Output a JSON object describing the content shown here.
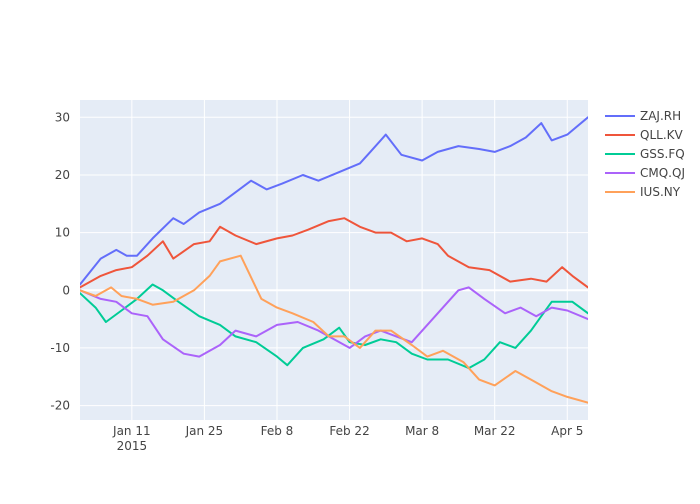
{
  "chart_data": {
    "type": "line",
    "title": "",
    "xlabel": "",
    "ylabel": "",
    "x_start": "2015-01-01",
    "x_end": "2015-04-10",
    "xlim": [
      "2015-01-01",
      "2015-04-09"
    ],
    "ylim": [
      -22.5,
      33
    ],
    "grid": true,
    "legend_position": "right",
    "x_ticks": [
      {
        "date": "2015-01-11",
        "label": "Jan 11",
        "sublabel": "2015"
      },
      {
        "date": "2015-01-25",
        "label": "Jan 25",
        "sublabel": ""
      },
      {
        "date": "2015-02-08",
        "label": "Feb 8",
        "sublabel": ""
      },
      {
        "date": "2015-02-22",
        "label": "Feb 22",
        "sublabel": ""
      },
      {
        "date": "2015-03-08",
        "label": "Mar 8",
        "sublabel": ""
      },
      {
        "date": "2015-03-22",
        "label": "Mar 22",
        "sublabel": ""
      },
      {
        "date": "2015-04-05",
        "label": "Apr 5",
        "sublabel": ""
      }
    ],
    "y_ticks": [
      -20,
      -10,
      0,
      10,
      20,
      30
    ],
    "series": [
      {
        "name": "ZAJ.RH",
        "color": "#636efa",
        "points": [
          [
            "2015-01-01",
            1.0
          ],
          [
            "2015-01-05",
            5.5
          ],
          [
            "2015-01-08",
            7.0
          ],
          [
            "2015-01-10",
            6.0
          ],
          [
            "2015-01-12",
            6.0
          ],
          [
            "2015-01-15",
            9.0
          ],
          [
            "2015-01-19",
            12.5
          ],
          [
            "2015-01-21",
            11.5
          ],
          [
            "2015-01-24",
            13.5
          ],
          [
            "2015-01-28",
            15.0
          ],
          [
            "2015-01-31",
            17.0
          ],
          [
            "2015-02-03",
            19.0
          ],
          [
            "2015-02-06",
            17.5
          ],
          [
            "2015-02-09",
            18.5
          ],
          [
            "2015-02-13",
            20.0
          ],
          [
            "2015-02-16",
            19.0
          ],
          [
            "2015-02-20",
            20.5
          ],
          [
            "2015-02-24",
            22.0
          ],
          [
            "2015-02-26",
            24.0
          ],
          [
            "2015-03-01",
            27.0
          ],
          [
            "2015-03-04",
            23.5
          ],
          [
            "2015-03-08",
            22.5
          ],
          [
            "2015-03-11",
            24.0
          ],
          [
            "2015-03-15",
            25.0
          ],
          [
            "2015-03-19",
            24.5
          ],
          [
            "2015-03-22",
            24.0
          ],
          [
            "2015-03-25",
            25.0
          ],
          [
            "2015-03-28",
            26.5
          ],
          [
            "2015-03-31",
            29.0
          ],
          [
            "2015-04-02",
            26.0
          ],
          [
            "2015-04-05",
            27.0
          ],
          [
            "2015-04-09",
            30.0
          ]
        ]
      },
      {
        "name": "QLL.KV",
        "color": "#ef553b",
        "points": [
          [
            "2015-01-01",
            0.5
          ],
          [
            "2015-01-05",
            2.5
          ],
          [
            "2015-01-08",
            3.5
          ],
          [
            "2015-01-11",
            4.0
          ],
          [
            "2015-01-14",
            6.0
          ],
          [
            "2015-01-17",
            8.5
          ],
          [
            "2015-01-19",
            5.5
          ],
          [
            "2015-01-23",
            8.0
          ],
          [
            "2015-01-26",
            8.5
          ],
          [
            "2015-01-28",
            11.0
          ],
          [
            "2015-01-31",
            9.5
          ],
          [
            "2015-02-04",
            8.0
          ],
          [
            "2015-02-08",
            9.0
          ],
          [
            "2015-02-11",
            9.5
          ],
          [
            "2015-02-14",
            10.5
          ],
          [
            "2015-02-18",
            12.0
          ],
          [
            "2015-02-21",
            12.5
          ],
          [
            "2015-02-24",
            11.0
          ],
          [
            "2015-02-27",
            10.0
          ],
          [
            "2015-03-02",
            10.0
          ],
          [
            "2015-03-05",
            8.5
          ],
          [
            "2015-03-08",
            9.0
          ],
          [
            "2015-03-11",
            8.0
          ],
          [
            "2015-03-13",
            6.0
          ],
          [
            "2015-03-17",
            4.0
          ],
          [
            "2015-03-21",
            3.5
          ],
          [
            "2015-03-25",
            1.5
          ],
          [
            "2015-03-29",
            2.0
          ],
          [
            "2015-04-01",
            1.5
          ],
          [
            "2015-04-04",
            4.0
          ],
          [
            "2015-04-06",
            2.5
          ],
          [
            "2015-04-09",
            0.5
          ]
        ]
      },
      {
        "name": "GSS.FQ",
        "color": "#00cc96",
        "points": [
          [
            "2015-01-01",
            -0.5
          ],
          [
            "2015-01-04",
            -3.0
          ],
          [
            "2015-01-06",
            -5.5
          ],
          [
            "2015-01-09",
            -3.5
          ],
          [
            "2015-01-12",
            -1.5
          ],
          [
            "2015-01-15",
            1.0
          ],
          [
            "2015-01-17",
            0.0
          ],
          [
            "2015-01-20",
            -2.0
          ],
          [
            "2015-01-24",
            -4.5
          ],
          [
            "2015-01-28",
            -6.0
          ],
          [
            "2015-01-31",
            -8.0
          ],
          [
            "2015-02-04",
            -9.0
          ],
          [
            "2015-02-08",
            -11.5
          ],
          [
            "2015-02-10",
            -13.0
          ],
          [
            "2015-02-13",
            -10.0
          ],
          [
            "2015-02-17",
            -8.5
          ],
          [
            "2015-02-20",
            -6.5
          ],
          [
            "2015-02-22",
            -9.0
          ],
          [
            "2015-02-25",
            -9.5
          ],
          [
            "2015-02-28",
            -8.5
          ],
          [
            "2015-03-03",
            -9.0
          ],
          [
            "2015-03-06",
            -11.0
          ],
          [
            "2015-03-09",
            -12.0
          ],
          [
            "2015-03-13",
            -12.0
          ],
          [
            "2015-03-17",
            -13.5
          ],
          [
            "2015-03-20",
            -12.0
          ],
          [
            "2015-03-23",
            -9.0
          ],
          [
            "2015-03-26",
            -10.0
          ],
          [
            "2015-03-29",
            -7.0
          ],
          [
            "2015-03-31",
            -4.5
          ],
          [
            "2015-04-02",
            -2.0
          ],
          [
            "2015-04-06",
            -2.0
          ],
          [
            "2015-04-09",
            -4.0
          ]
        ]
      },
      {
        "name": "CMQ.QJ",
        "color": "#ab63fa",
        "points": [
          [
            "2015-01-01",
            0.0
          ],
          [
            "2015-01-05",
            -1.5
          ],
          [
            "2015-01-08",
            -2.0
          ],
          [
            "2015-01-11",
            -4.0
          ],
          [
            "2015-01-14",
            -4.5
          ],
          [
            "2015-01-17",
            -8.5
          ],
          [
            "2015-01-21",
            -11.0
          ],
          [
            "2015-01-24",
            -11.5
          ],
          [
            "2015-01-28",
            -9.5
          ],
          [
            "2015-01-31",
            -7.0
          ],
          [
            "2015-02-04",
            -8.0
          ],
          [
            "2015-02-08",
            -6.0
          ],
          [
            "2015-02-12",
            -5.5
          ],
          [
            "2015-02-16",
            -7.0
          ],
          [
            "2015-02-19",
            -8.5
          ],
          [
            "2015-02-22",
            -10.0
          ],
          [
            "2015-02-25",
            -8.0
          ],
          [
            "2015-02-28",
            -7.0
          ],
          [
            "2015-03-03",
            -8.0
          ],
          [
            "2015-03-06",
            -9.0
          ],
          [
            "2015-03-09",
            -6.0
          ],
          [
            "2015-03-12",
            -3.0
          ],
          [
            "2015-03-15",
            0.0
          ],
          [
            "2015-03-17",
            0.5
          ],
          [
            "2015-03-20",
            -1.5
          ],
          [
            "2015-03-24",
            -4.0
          ],
          [
            "2015-03-27",
            -3.0
          ],
          [
            "2015-03-30",
            -4.5
          ],
          [
            "2015-04-02",
            -3.0
          ],
          [
            "2015-04-05",
            -3.5
          ],
          [
            "2015-04-09",
            -5.0
          ]
        ]
      },
      {
        "name": "IUS.NY",
        "color": "#ffa15a",
        "points": [
          [
            "2015-01-01",
            0.0
          ],
          [
            "2015-01-04",
            -1.0
          ],
          [
            "2015-01-07",
            0.5
          ],
          [
            "2015-01-09",
            -1.0
          ],
          [
            "2015-01-12",
            -1.5
          ],
          [
            "2015-01-15",
            -2.5
          ],
          [
            "2015-01-19",
            -2.0
          ],
          [
            "2015-01-23",
            0.0
          ],
          [
            "2015-01-26",
            2.5
          ],
          [
            "2015-01-28",
            5.0
          ],
          [
            "2015-02-01",
            6.0
          ],
          [
            "2015-02-05",
            -1.5
          ],
          [
            "2015-02-08",
            -3.0
          ],
          [
            "2015-02-11",
            -4.0
          ],
          [
            "2015-02-15",
            -5.5
          ],
          [
            "2015-02-18",
            -8.0
          ],
          [
            "2015-02-21",
            -8.0
          ],
          [
            "2015-02-24",
            -10.0
          ],
          [
            "2015-02-27",
            -7.0
          ],
          [
            "2015-03-02",
            -7.0
          ],
          [
            "2015-03-06",
            -9.5
          ],
          [
            "2015-03-09",
            -11.5
          ],
          [
            "2015-03-12",
            -10.5
          ],
          [
            "2015-03-16",
            -12.5
          ],
          [
            "2015-03-19",
            -15.5
          ],
          [
            "2015-03-22",
            -16.5
          ],
          [
            "2015-03-26",
            -14.0
          ],
          [
            "2015-03-29",
            -15.5
          ],
          [
            "2015-04-02",
            -17.5
          ],
          [
            "2015-04-05",
            -18.5
          ],
          [
            "2015-04-09",
            -19.5
          ]
        ]
      }
    ]
  }
}
